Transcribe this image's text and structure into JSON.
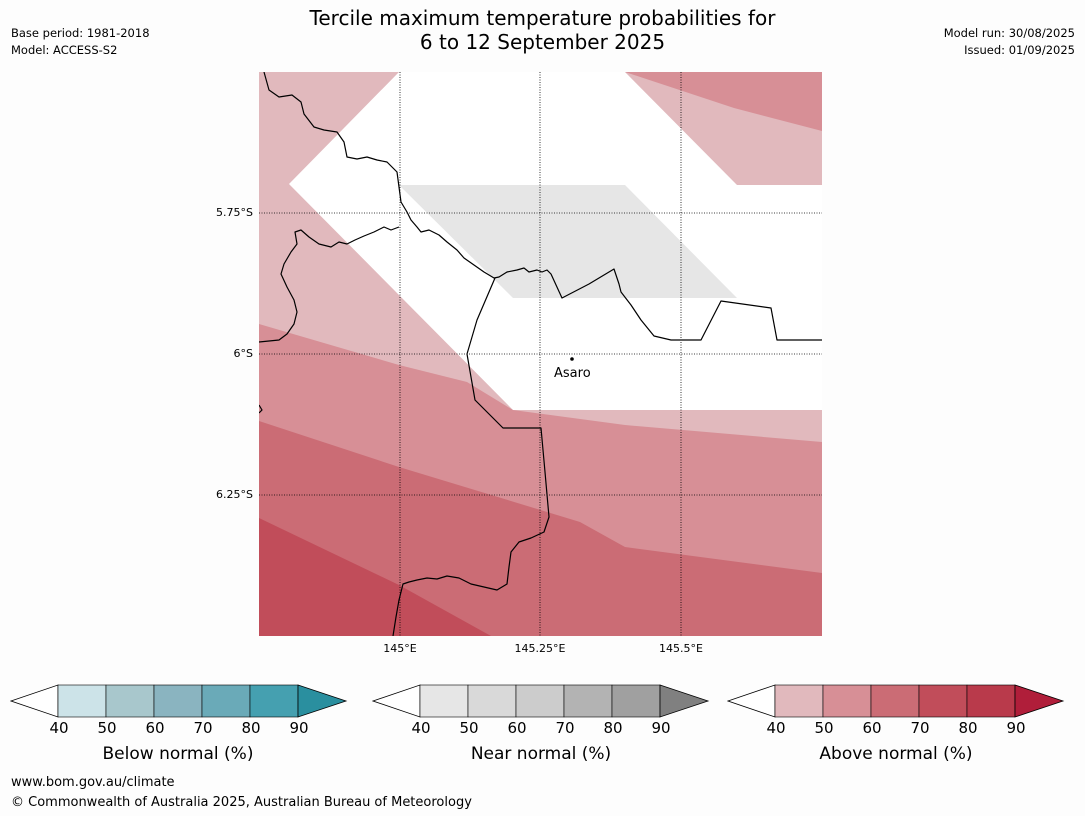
{
  "title": {
    "line1": "Tercile maximum temperature probabilities for",
    "line2": "6 to 12 September 2025"
  },
  "meta_left": {
    "base_period": "Base period: 1981-2018",
    "model": "Model: ACCESS-S2"
  },
  "meta_right": {
    "model_run": "Model run: 30/08/2025",
    "issued": "Issued: 01/09/2025"
  },
  "map": {
    "latitude_labels": [
      "5.75°S",
      "6°S",
      "6.25°S"
    ],
    "longitude_labels": [
      "145°E",
      "145.25°E",
      "145.5°E"
    ],
    "place_label": "Asaro"
  },
  "colorbars": [
    {
      "name": "below",
      "label": "Below normal (%)",
      "ticks": [
        "40",
        "50",
        "60",
        "70",
        "80",
        "90"
      ],
      "colors": [
        "#cce3e8",
        "#a8c7cc",
        "#8ab4c0",
        "#6aaab8",
        "#45a0b0",
        "#2a8f9f"
      ]
    },
    {
      "name": "near",
      "label": "Near normal (%)",
      "ticks": [
        "40",
        "50",
        "60",
        "70",
        "80",
        "90"
      ],
      "colors": [
        "#e6e6e6",
        "#d9d9d9",
        "#cccccc",
        "#b3b3b3",
        "#a0a0a0",
        "#808080"
      ]
    },
    {
      "name": "above",
      "label": "Above normal (%)",
      "ticks": [
        "40",
        "50",
        "60",
        "70",
        "80",
        "90"
      ],
      "colors": [
        "#e1b9bd",
        "#d78f96",
        "#cb6c75",
        "#c14d5a",
        "#b93a4b",
        "#b01e3a"
      ]
    }
  ],
  "footer": {
    "url": "www.bom.gov.au/climate",
    "copyright": "© Commonwealth of Australia 2025, Australian Bureau of Meteorology"
  }
}
